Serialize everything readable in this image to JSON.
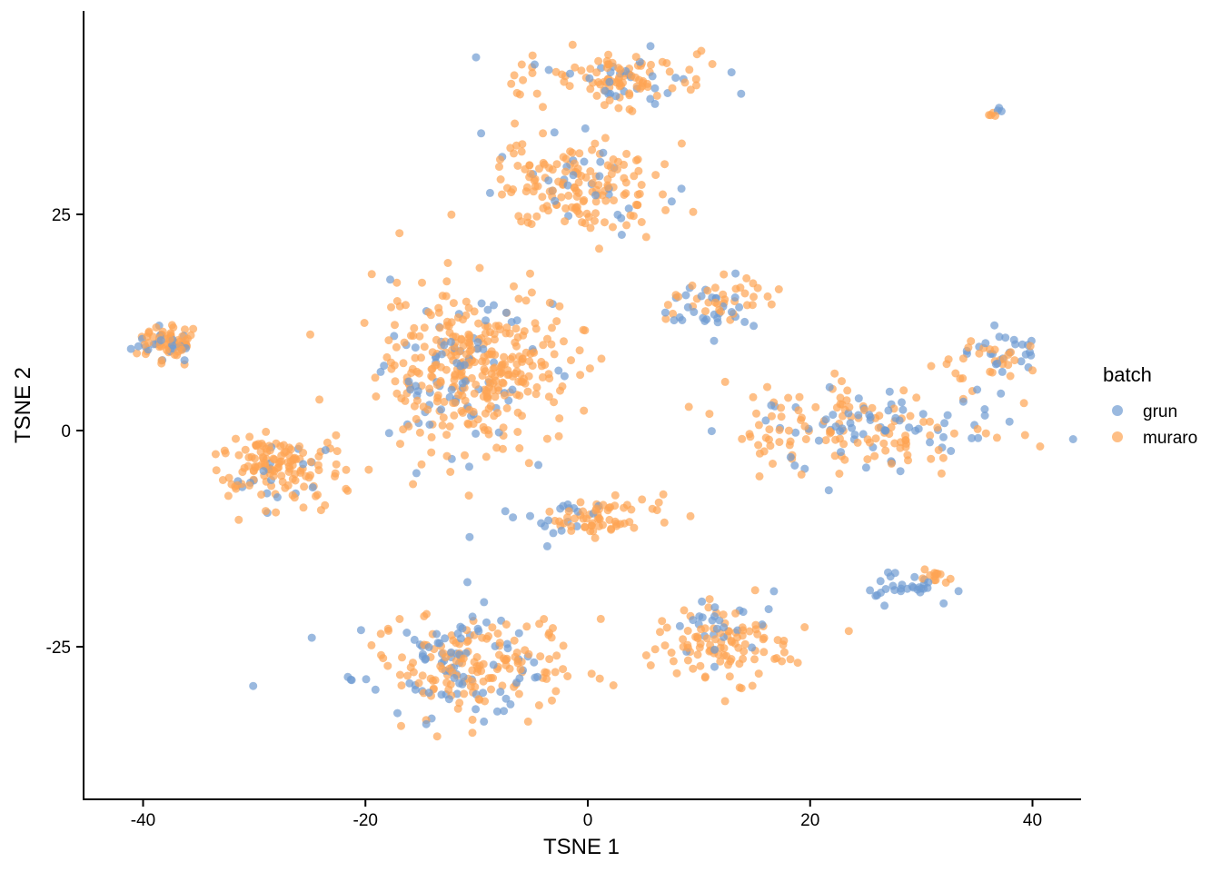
{
  "chart_data": {
    "type": "scatter",
    "xlabel": "TSNE 1",
    "ylabel": "TSNE 2",
    "xlim": [
      -45,
      44
    ],
    "ylim": [
      -42,
      48
    ],
    "xticks": [
      -40,
      -20,
      0,
      20,
      40
    ],
    "yticks": [
      -25,
      0,
      25
    ],
    "xtick_labels": [
      "-40",
      "-20",
      "0",
      "20",
      "40"
    ],
    "ytick_labels": [
      "-25",
      "0",
      "25"
    ],
    "grid": false,
    "legend_position": "right",
    "legend_title": "batch",
    "point_opacity": 0.7,
    "series": [
      {
        "name": "grun",
        "color": "#6f9bd2",
        "clusters": [
          {
            "cx": -38,
            "cy": 10,
            "sx": 2.0,
            "sy": 1.4,
            "n": 22
          },
          {
            "cx": -28,
            "cy": -5,
            "sx": 4.0,
            "sy": 2.5,
            "n": 18
          },
          {
            "cx": -12,
            "cy": 6,
            "sx": 5.0,
            "sy": 6.0,
            "n": 75
          },
          {
            "cx": 3,
            "cy": 41,
            "sx": 5.0,
            "sy": 2.5,
            "n": 30
          },
          {
            "cx": 0,
            "cy": 29,
            "sx": 5.0,
            "sy": 3.5,
            "n": 30
          },
          {
            "cx": 11,
            "cy": 14,
            "sx": 3.0,
            "sy": 2.0,
            "n": 30
          },
          {
            "cx": -3,
            "cy": -10,
            "sx": 3.0,
            "sy": 2.0,
            "n": 20
          },
          {
            "cx": 24,
            "cy": 0,
            "sx": 8.0,
            "sy": 3.5,
            "n": 70
          },
          {
            "cx": 37,
            "cy": 9,
            "sx": 2.5,
            "sy": 2.0,
            "n": 25
          },
          {
            "cx": 28,
            "cy": -18,
            "sx": 3.0,
            "sy": 1.0,
            "n": 30
          },
          {
            "cx": -12,
            "cy": -27,
            "sx": 6.0,
            "sy": 4.0,
            "n": 85
          },
          {
            "cx": 11,
            "cy": -22,
            "sx": 3.0,
            "sy": 4.0,
            "n": 25
          },
          {
            "cx": 37,
            "cy": 37,
            "sx": 0.3,
            "sy": 0.3,
            "n": 3
          }
        ]
      },
      {
        "name": "muraro",
        "color": "#fda452",
        "clusters": [
          {
            "cx": -38,
            "cy": 10,
            "sx": 2.0,
            "sy": 1.5,
            "n": 55
          },
          {
            "cx": -28,
            "cy": -4,
            "sx": 4.0,
            "sy": 2.5,
            "n": 130
          },
          {
            "cx": -10,
            "cy": 7,
            "sx": 6.0,
            "sy": 6.0,
            "n": 330
          },
          {
            "cx": 3,
            "cy": 41,
            "sx": 5.0,
            "sy": 2.0,
            "n": 90
          },
          {
            "cx": -1,
            "cy": 28,
            "sx": 5.0,
            "sy": 3.5,
            "n": 150
          },
          {
            "cx": 12,
            "cy": 15,
            "sx": 3.0,
            "sy": 2.0,
            "n": 35
          },
          {
            "cx": 1,
            "cy": -10,
            "sx": 3.5,
            "sy": 2.0,
            "n": 60
          },
          {
            "cx": 25,
            "cy": 0,
            "sx": 8.0,
            "sy": 3.5,
            "n": 120
          },
          {
            "cx": 36,
            "cy": 8,
            "sx": 3.0,
            "sy": 2.0,
            "n": 25
          },
          {
            "cx": 31,
            "cy": -17,
            "sx": 1.5,
            "sy": 0.8,
            "n": 12
          },
          {
            "cx": -10,
            "cy": -27,
            "sx": 6.0,
            "sy": 4.0,
            "n": 150
          },
          {
            "cx": 12,
            "cy": -25,
            "sx": 4.0,
            "sy": 3.0,
            "n": 100
          },
          {
            "cx": 36.5,
            "cy": 36.5,
            "sx": 0.3,
            "sy": 0.3,
            "n": 4
          }
        ]
      }
    ]
  }
}
